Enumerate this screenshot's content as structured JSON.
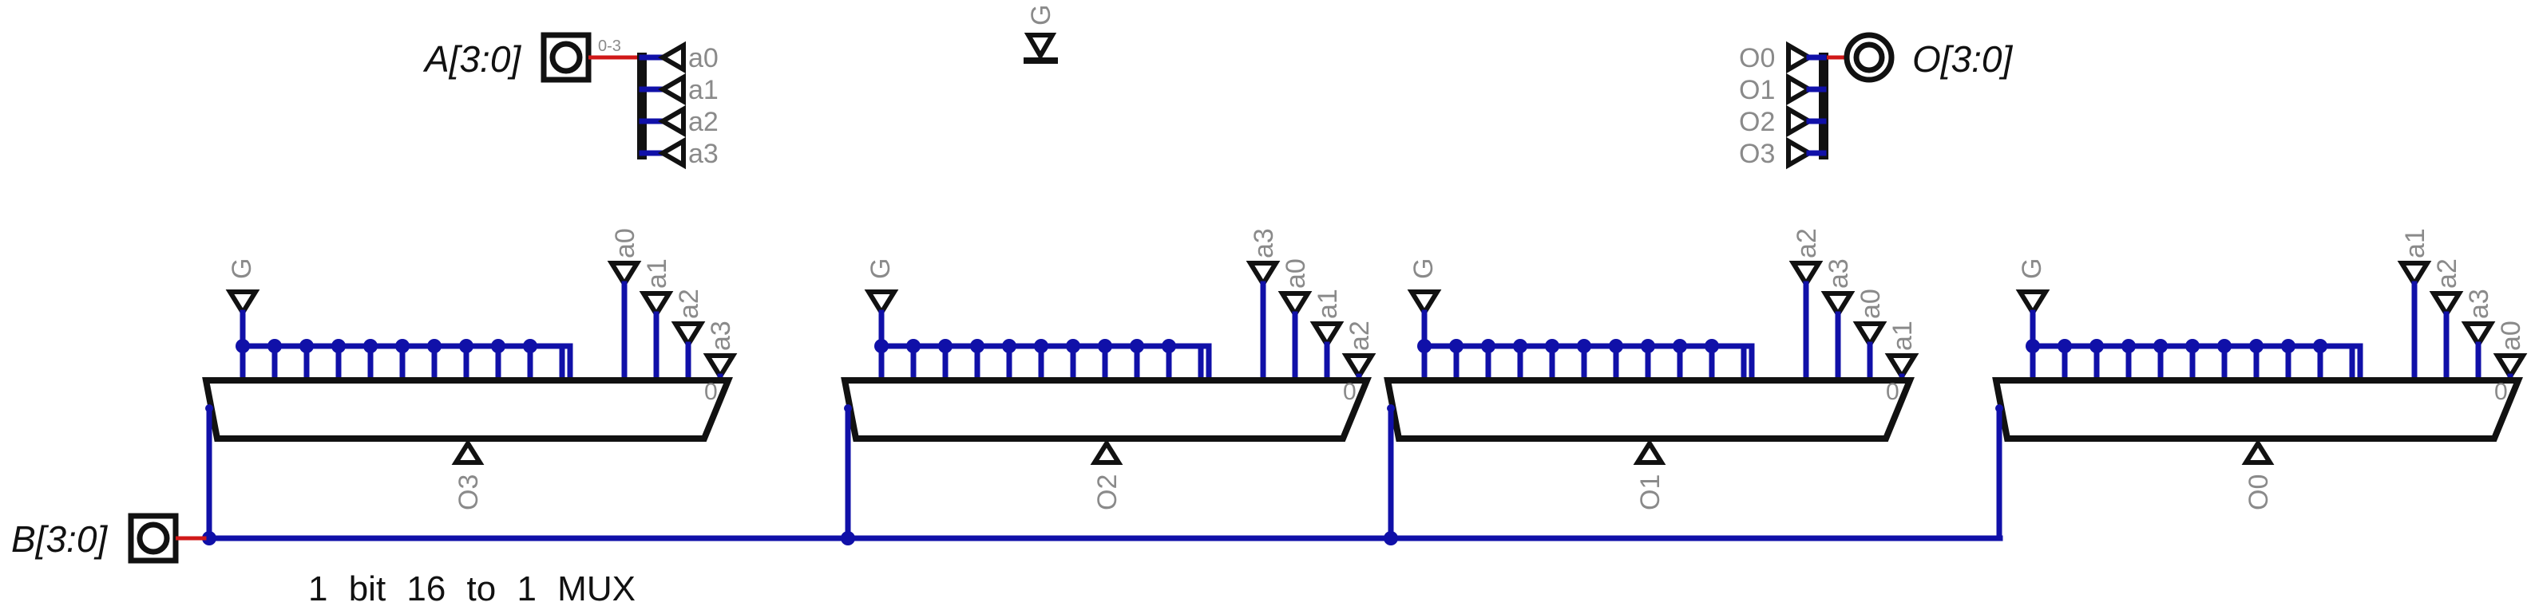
{
  "pins": {
    "a_label": "A[3:0]",
    "b_label": "B[3:0]",
    "o_label": "O[3:0]"
  },
  "splitter_a": {
    "range_label": "0-3",
    "taps": [
      "a0",
      "a1",
      "a2",
      "a3"
    ]
  },
  "splitter_o": {
    "taps": [
      "O0",
      "O1",
      "O2",
      "O3"
    ]
  },
  "g_tunnel": {
    "label": "G"
  },
  "caption": "1 bit 16 to 1 MUX",
  "muxes": [
    {
      "enable": "G",
      "selects": [
        "a0",
        "a1",
        "a2",
        "a3"
      ],
      "input_zero": "0",
      "output": "O3"
    },
    {
      "enable": "G",
      "selects": [
        "a3",
        "a0",
        "a1",
        "a2"
      ],
      "input_zero": "0",
      "output": "O2"
    },
    {
      "enable": "G",
      "selects": [
        "a2",
        "a3",
        "a0",
        "a1"
      ],
      "input_zero": "0",
      "output": "O1"
    },
    {
      "enable": "G",
      "selects": [
        "a1",
        "a2",
        "a3",
        "a0"
      ],
      "input_zero": "0",
      "output": "O0"
    }
  ],
  "colors": {
    "wire": "#1010a8",
    "bus_stub": "#d01818",
    "outline": "#111111",
    "label": "#8a8a8a"
  }
}
